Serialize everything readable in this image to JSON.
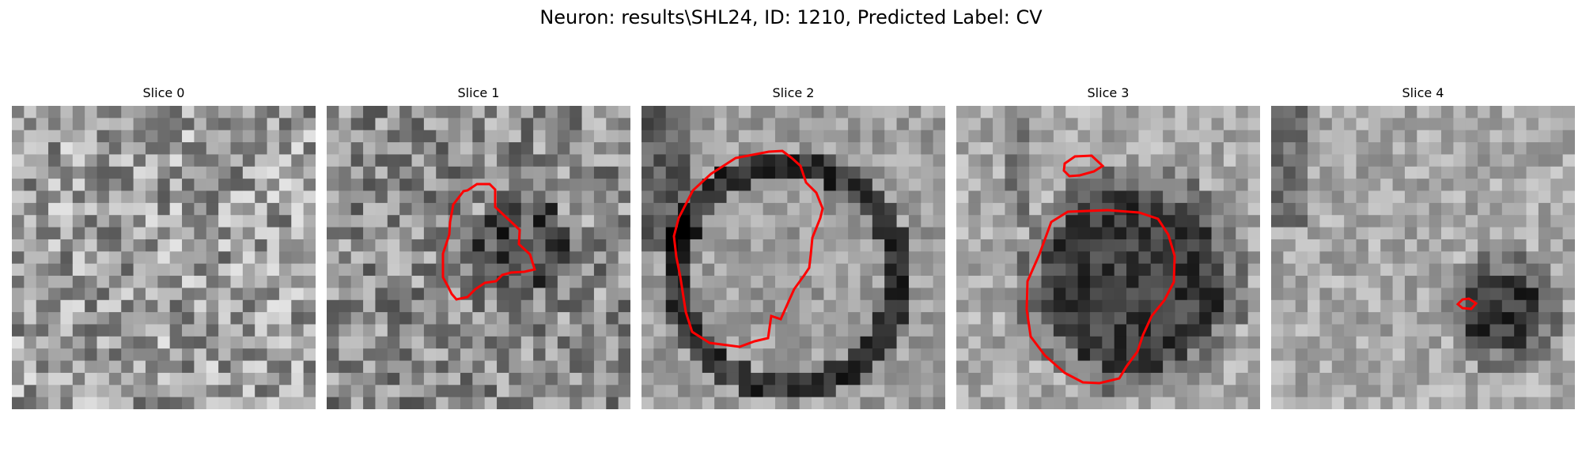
{
  "figure": {
    "title": "Neuron: results\\SHL24, ID: 1210, Predicted Label: CV"
  },
  "slices": [
    {
      "label": "Slice 0"
    },
    {
      "label": "Slice 1"
    },
    {
      "label": "Slice 2"
    },
    {
      "label": "Slice 3"
    },
    {
      "label": "Slice 4"
    }
  ],
  "colors": {
    "contour": "#ff0000",
    "colormap": "grayscale"
  }
}
